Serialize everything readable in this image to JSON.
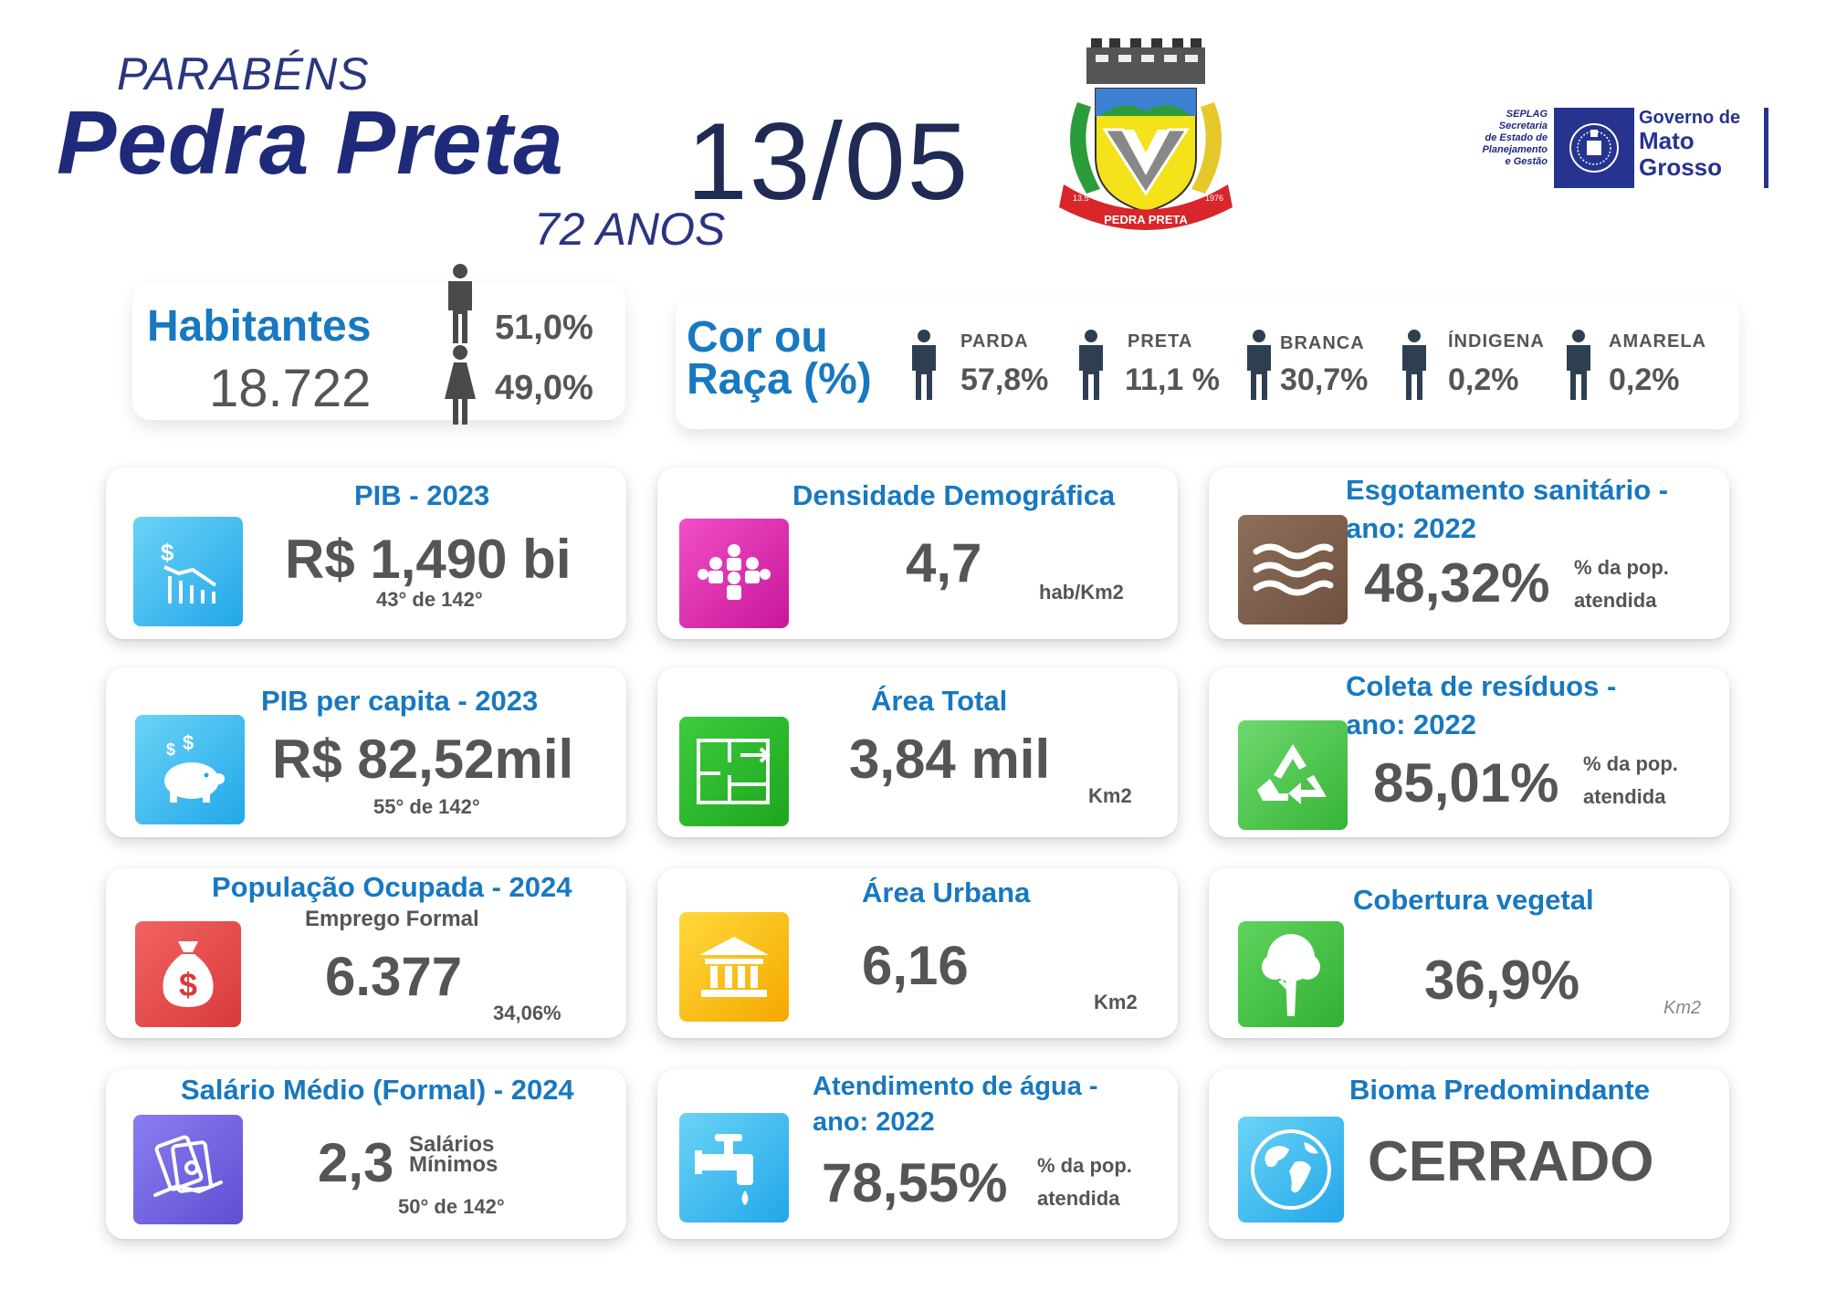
{
  "header": {
    "parabens": "PARABÉNS",
    "city": "Pedra Preta",
    "date": "13/05",
    "anos": "72 ANOS"
  },
  "crest": {
    "left_text": "13.5",
    "banner": "PEDRA PRETA",
    "right_text": "1976"
  },
  "gov_logo": {
    "seplag": [
      "SEPLAG",
      "Secretaria",
      "de Estado de",
      "Planejamento",
      "e Gestão"
    ],
    "gov_line1": "Governo de",
    "gov_line2": "Mato",
    "gov_line3": "Grosso"
  },
  "habitantes": {
    "title": "Habitantes",
    "value": "18.722",
    "male_pct": "51,0%",
    "female_pct": "49,0%"
  },
  "raca": {
    "title_line1": "Cor ou",
    "title_line2": "Raça (%)",
    "items": [
      {
        "label": "PARDA",
        "value": "57,8%"
      },
      {
        "label": "PRETA",
        "value": "11,1 %"
      },
      {
        "label": "BRANCA",
        "value": "30,7%"
      },
      {
        "label": "ÍNDIGENA",
        "value": "0,2%"
      },
      {
        "label": "AMARELA",
        "value": "0,2%"
      }
    ]
  },
  "cards": {
    "pib": {
      "title": "PIB - 2023",
      "value": "R$ 1,490 bi",
      "rank": "43° de 142°"
    },
    "densidade": {
      "title": "Densidade Demográfica",
      "value": "4,7",
      "unit": "hab/Km2"
    },
    "esgoto": {
      "title_line1": "Esgotamento sanitário -",
      "title_line2": "ano: 2022",
      "value": "48,32%",
      "unit_line1": "% da pop.",
      "unit_line2": "atendida"
    },
    "pib_pc": {
      "title": "PIB per capita - 2023",
      "value": "R$ 82,52mil",
      "rank": "55° de 142°"
    },
    "area_total": {
      "title": "Área Total",
      "value": "3,84 mil",
      "unit": "Km2"
    },
    "residuos": {
      "title_line1": "Coleta de resíduos -",
      "title_line2": "ano: 2022",
      "value": "85,01%",
      "unit_line1": "% da pop.",
      "unit_line2": "atendida"
    },
    "pop_ocupada": {
      "title": "População Ocupada - 2024",
      "subtitle": "Emprego Formal",
      "value": "6.377",
      "pct": "34,06%"
    },
    "area_urbana": {
      "title": "Área Urbana",
      "value": "6,16",
      "unit": "Km2"
    },
    "vegetal": {
      "title": "Cobertura vegetal",
      "value": "36,9%",
      "unit": "Km2"
    },
    "salario": {
      "title": "Salário Médio (Formal) - 2024",
      "value": "2,3",
      "unit_line1": "Salários",
      "unit_line2": "Mínimos",
      "rank": "50° de 142°"
    },
    "agua": {
      "title_line1": "Atendimento de água -",
      "title_line2": "ano: 2022",
      "value": "78,55%",
      "unit_line1": "% da pop.",
      "unit_line2": "atendida"
    },
    "bioma": {
      "title": "Bioma Predomindante",
      "value": "CERRADO"
    }
  },
  "colors": {
    "title_blue": "#1878c0",
    "navy": "#1f2a7a",
    "text_gray": "#555555"
  }
}
